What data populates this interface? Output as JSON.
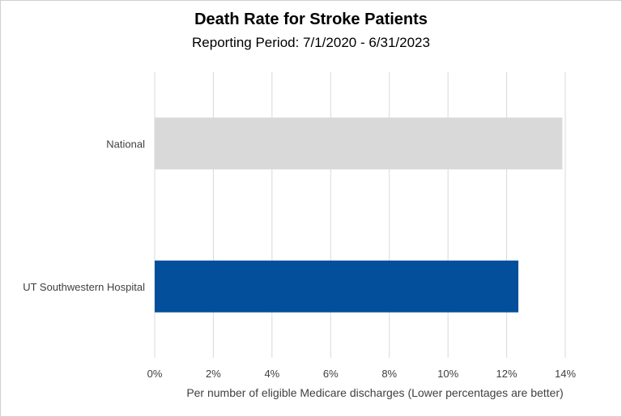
{
  "chart_data": {
    "type": "bar",
    "orientation": "horizontal",
    "title": "Death Rate for Stroke Patients",
    "subtitle": "Reporting Period: 7/1/2020 - 6/31/2023",
    "xlabel": "Per number of eligible Medicare discharges (Lower percentages are better)",
    "ylabel": "",
    "categories": [
      "National",
      "UT Southwestern Hospital"
    ],
    "values": [
      13.9,
      12.4
    ],
    "bar_colors": [
      "#d9d9d9",
      "#034f9c"
    ],
    "xlim": [
      0,
      14
    ],
    "xticks": [
      0,
      2,
      4,
      6,
      8,
      10,
      12,
      14
    ],
    "xtick_labels": [
      "0%",
      "2%",
      "4%",
      "6%",
      "8%",
      "10%",
      "12%",
      "14%"
    ],
    "gridlines": true,
    "legend": "none"
  }
}
